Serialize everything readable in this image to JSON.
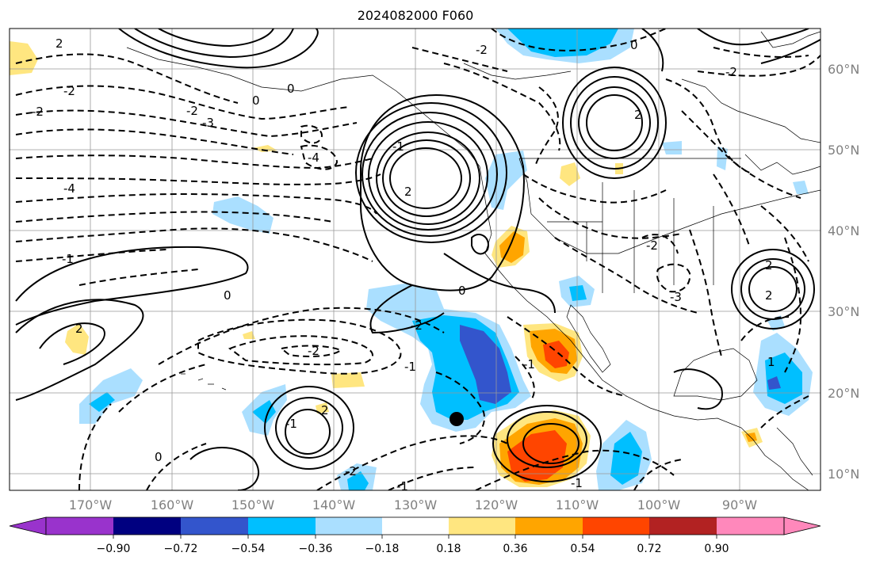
{
  "title": "2024082000 F060",
  "lon_ticks": [
    "170°W",
    "160°W",
    "150°W",
    "140°W",
    "130°W",
    "120°W",
    "110°W",
    "100°W",
    "90°W"
  ],
  "lat_ticks": [
    "60°N",
    "50°N",
    "40°N",
    "30°N",
    "20°N",
    "10°N"
  ],
  "colorbar": {
    "labels": [
      "−0.90",
      "−0.72",
      "−0.54",
      "−0.36",
      "−0.18",
      "0.18",
      "0.36",
      "0.54",
      "0.72",
      "0.90"
    ],
    "colors": [
      "#9933cc",
      "#000080",
      "#3355cc",
      "#00bfff",
      "#aadfff",
      "#ffffff",
      "#ffe680",
      "#ffa500",
      "#ff4500",
      "#b22222",
      "#ff88bb"
    ]
  },
  "contour_labels": [
    "2",
    "-2",
    "-2",
    "0",
    "-3",
    "-4",
    "-2",
    "-4",
    "-1",
    "0",
    "2",
    "-2",
    "-2",
    "-1",
    "2",
    "-1",
    "0",
    "0",
    "-2",
    "0",
    "2",
    "-2",
    "-2",
    "-3",
    "2",
    "-1",
    "-1",
    "-2",
    "0",
    "-1",
    "2",
    "2",
    "-1",
    "1"
  ],
  "marker": "storm-center"
}
